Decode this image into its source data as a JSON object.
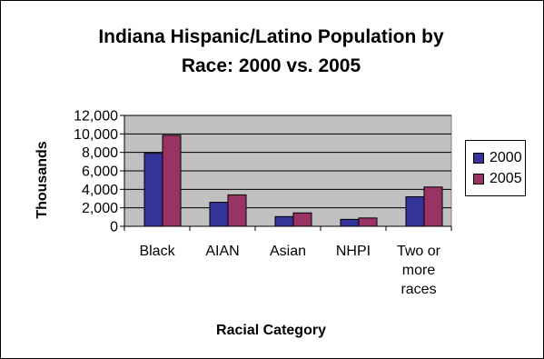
{
  "chart_data": {
    "type": "bar",
    "title": "Indiana Hispanic/Latino Population by Race: 2000 vs. 2005",
    "title_lines": [
      "Indiana Hispanic/Latino Population by",
      "Race: 2000 vs. 2005"
    ],
    "xlabel": "Racial Category",
    "ylabel": "Thousands",
    "categories": [
      "Black",
      "AIAN",
      "Asian",
      "NHPI",
      "Two or more races"
    ],
    "category_lines": [
      [
        "Black"
      ],
      [
        "AIAN"
      ],
      [
        "Asian"
      ],
      [
        "NHPI"
      ],
      [
        "Two or",
        "more",
        "races"
      ]
    ],
    "series": [
      {
        "name": "2000",
        "color": "#333399",
        "values": [
          7900,
          2600,
          1050,
          750,
          3200
        ]
      },
      {
        "name": "2005",
        "color": "#993366",
        "values": [
          9850,
          3400,
          1450,
          900,
          4250
        ]
      }
    ],
    "ylim": [
      0,
      12000
    ],
    "yticks": [
      0,
      2000,
      4000,
      6000,
      8000,
      10000,
      12000
    ],
    "ytick_labels": [
      "0",
      "2,000",
      "4,000",
      "6,000",
      "8,000",
      "10,000",
      "12,000"
    ],
    "grid": true,
    "plot_background": "#c0c0c0",
    "legend_position": "right"
  }
}
